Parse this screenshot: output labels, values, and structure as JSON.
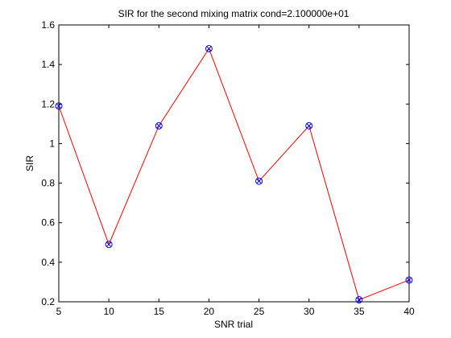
{
  "chart_data": {
    "type": "line",
    "title": "SIR for the second mixing matrix cond=2.100000e+01",
    "xlabel": "SNR trial",
    "ylabel": "SIR",
    "xlim": [
      5,
      40
    ],
    "ylim": [
      0.2,
      1.6
    ],
    "xticks": [
      5,
      10,
      15,
      20,
      25,
      30,
      35,
      40
    ],
    "yticks": [
      0.2,
      0.4,
      0.6,
      0.8,
      1,
      1.2,
      1.4,
      1.6
    ],
    "xtick_labels": [
      "5",
      "10",
      "15",
      "20",
      "25",
      "30",
      "35",
      "40"
    ],
    "ytick_labels": [
      "0.2",
      "0.4",
      "0.6",
      "0.8",
      "1",
      "1.2",
      "1.4",
      "1.6"
    ],
    "grid": false,
    "series": [
      {
        "x": [
          5,
          10,
          15,
          20,
          25,
          30,
          35,
          40
        ],
        "values": [
          1.19,
          0.49,
          1.09,
          1.48,
          0.81,
          1.09,
          0.21,
          0.31
        ],
        "line_color": "#ff0000",
        "marker": "circle-x",
        "marker_color": "#0000ff"
      }
    ]
  }
}
